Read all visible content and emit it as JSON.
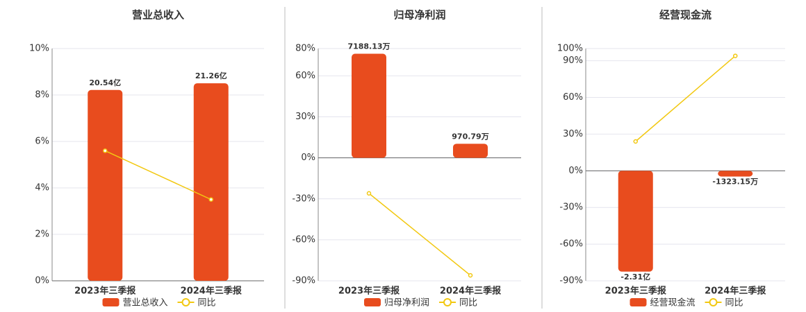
{
  "chart_data": [
    {
      "type": "combo",
      "title": "营业总收入",
      "categories": [
        "2023年三季报",
        "2024年三季报"
      ],
      "series": [
        {
          "name": "营业总收入",
          "type": "bar",
          "axis": "y2",
          "color": "#e84c1e",
          "values": [
            2054000000,
            2126000000
          ],
          "value_labels": [
            "20.54亿",
            "21.26亿"
          ]
        },
        {
          "name": "同比",
          "type": "line",
          "color": "#f2c811",
          "values": [
            5.6,
            3.5
          ]
        }
      ],
      "ylim": [
        0,
        10
      ],
      "yticks": [
        {
          "value": 0,
          "label": "0%"
        },
        {
          "value": 2,
          "label": "2%"
        },
        {
          "value": 4,
          "label": "4%"
        },
        {
          "value": 6,
          "label": "6%"
        },
        {
          "value": 8,
          "label": "8%"
        },
        {
          "value": 10,
          "label": "10%"
        }
      ],
      "y2lim": [
        0,
        2500000000
      ],
      "grid": true
    },
    {
      "type": "combo",
      "title": "归母净利润",
      "categories": [
        "2023年三季报",
        "2024年三季报"
      ],
      "series": [
        {
          "name": "归母净利润",
          "type": "bar",
          "axis": "y2",
          "color": "#e84c1e",
          "values": [
            71881300,
            9707900
          ],
          "value_labels": [
            "7188.13万",
            "970.79万"
          ]
        },
        {
          "name": "同比",
          "type": "line",
          "color": "#f2c811",
          "values": [
            -26,
            -86
          ]
        }
      ],
      "ylim": [
        -90,
        80
      ],
      "yticks": [
        {
          "value": -90,
          "label": "-90%"
        },
        {
          "value": -60,
          "label": "-60%"
        },
        {
          "value": -30,
          "label": "-30%"
        },
        {
          "value": 0,
          "label": "0%"
        },
        {
          "value": 30,
          "label": "30%"
        },
        {
          "value": 60,
          "label": "60%"
        },
        {
          "value": 80,
          "label": "80%"
        }
      ],
      "y2lim": [
        -85000000,
        75500000
      ],
      "grid": true
    },
    {
      "type": "combo",
      "title": "经营现金流",
      "categories": [
        "2023年三季报",
        "2024年三季报"
      ],
      "series": [
        {
          "name": "经营现金流",
          "type": "bar",
          "axis": "y2",
          "color": "#e84c1e",
          "values": [
            -231000000,
            -13231500
          ],
          "value_labels": [
            "-2.31亿",
            "-1323.15万"
          ]
        },
        {
          "name": "同比",
          "type": "line",
          "color": "#f2c811",
          "values": [
            24,
            94
          ]
        }
      ],
      "ylim": [
        -90,
        100
      ],
      "yticks": [
        {
          "value": -90,
          "label": "-90%"
        },
        {
          "value": -60,
          "label": "-60%"
        },
        {
          "value": -30,
          "label": "-30%"
        },
        {
          "value": 0,
          "label": "0%"
        },
        {
          "value": 30,
          "label": "30%"
        },
        {
          "value": 60,
          "label": "60%"
        },
        {
          "value": 90,
          "label": "90%"
        },
        {
          "value": 100,
          "label": "100%"
        }
      ],
      "y2lim": [
        -252000000,
        280000000
      ],
      "grid": true
    }
  ]
}
